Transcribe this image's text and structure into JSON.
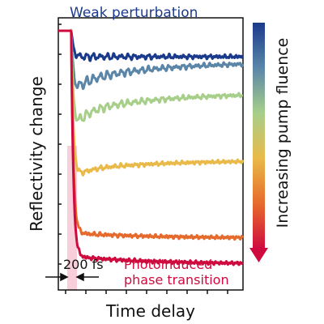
{
  "chart_data": {
    "type": "line",
    "title": "",
    "xlabel": "Time delay",
    "ylabel": "Reflectivity change",
    "xlim": [
      -0.3,
      4.0
    ],
    "ylim": [
      -1.0,
      0.05
    ],
    "grid": false,
    "legend": "none",
    "annotations": {
      "top": "Weak perturbation",
      "bottom_line1": "Photoinduced",
      "bottom_line2": "phase transition",
      "pulse_width": "200 fs"
    },
    "colorbar_label": "Increasing pump fluence",
    "colorbar_colors": [
      "#1a3a8c",
      "#5b86a8",
      "#a7cf8a",
      "#e9b949",
      "#e66a2c",
      "#cf0a3e"
    ],
    "annotation_colors": {
      "top": "#1a3a8c",
      "bottom": "#cf0a3e",
      "pulse_band": "#f6c6d2"
    },
    "series": [
      {
        "color": "#1a3a8c",
        "drop": 0.1,
        "plateau": 0.1,
        "relax": 0.1,
        "osc": 0.012
      },
      {
        "color": "#5b86a8",
        "drop": 0.25,
        "plateau": 0.2,
        "relax": 0.12,
        "osc": 0.018
      },
      {
        "color": "#a7cf8a",
        "drop": 0.4,
        "plateau": 0.32,
        "relax": 0.24,
        "osc": 0.016
      },
      {
        "color": "#e9b949",
        "drop": 0.58,
        "plateau": 0.54,
        "relax": 0.5,
        "osc": 0.006
      },
      {
        "color": "#e66a2c",
        "drop": 0.78,
        "plateau": 0.78,
        "relax": 0.8,
        "osc": 0.004
      },
      {
        "color": "#cf0a3e",
        "drop": 0.87,
        "plateau": 0.87,
        "relax": 0.9,
        "osc": 0.003
      }
    ]
  }
}
